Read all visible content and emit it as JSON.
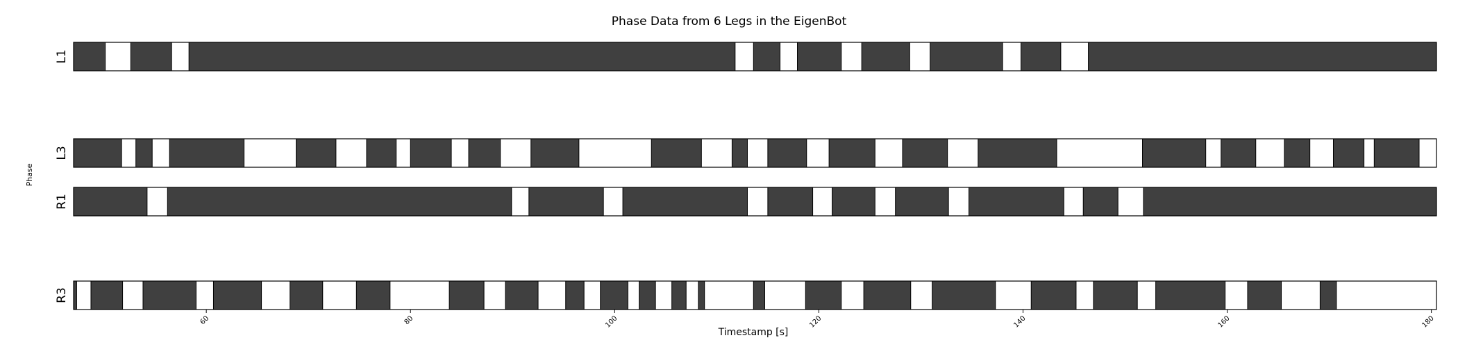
{
  "chart_data": {
    "type": "phase-bar",
    "title": "Phase Data from 6 Legs in the EigenBot",
    "xlabel": "Timestamp [s]",
    "ylabel": "Phase",
    "xlim": [
      47,
      180.5
    ],
    "xticks": [
      60,
      80,
      100,
      120,
      140,
      160,
      180
    ],
    "colors": {
      "stance": "#404040",
      "swing": "#ffffff",
      "edge": "#000000"
    },
    "rows": [
      {
        "label": "L1",
        "swing_intervals": [
          [
            50.1,
            52.6
          ],
          [
            56.6,
            58.3
          ],
          [
            111.8,
            113.6
          ],
          [
            116.2,
            117.9
          ],
          [
            122.2,
            124.2
          ],
          [
            128.9,
            130.9
          ],
          [
            138.0,
            139.8
          ],
          [
            143.7,
            146.4
          ]
        ]
      },
      {
        "label": "L3",
        "swing_intervals": [
          [
            51.7,
            53.1
          ],
          [
            54.7,
            56.4
          ],
          [
            63.7,
            68.8
          ],
          [
            72.7,
            75.7
          ],
          [
            78.6,
            80.0
          ],
          [
            84.0,
            85.7
          ],
          [
            88.8,
            91.8
          ],
          [
            96.5,
            103.6
          ],
          [
            108.5,
            111.5
          ],
          [
            113.0,
            115.0
          ],
          [
            118.8,
            121.0
          ],
          [
            125.5,
            128.2
          ],
          [
            132.6,
            135.6
          ],
          [
            143.3,
            151.7
          ],
          [
            157.9,
            159.4
          ],
          [
            162.8,
            165.6
          ],
          [
            168.1,
            170.4
          ],
          [
            173.4,
            174.4
          ],
          [
            178.8,
            180.5
          ]
        ]
      },
      {
        "label": "R1",
        "swing_intervals": [
          [
            54.2,
            56.2
          ],
          [
            89.9,
            91.6
          ],
          [
            98.9,
            100.8
          ],
          [
            113.0,
            115.0
          ],
          [
            119.4,
            121.3
          ],
          [
            125.5,
            127.5
          ],
          [
            132.7,
            134.7
          ],
          [
            144.0,
            145.9
          ],
          [
            149.3,
            151.8
          ]
        ]
      },
      {
        "label": "R3",
        "swing_intervals": [
          [
            47.3,
            48.7
          ],
          [
            51.8,
            53.8
          ],
          [
            59.0,
            60.7
          ],
          [
            65.4,
            68.2
          ],
          [
            71.4,
            74.7
          ],
          [
            78.0,
            83.8
          ],
          [
            87.2,
            89.3
          ],
          [
            92.5,
            95.2
          ],
          [
            97.0,
            98.6
          ],
          [
            101.3,
            102.4
          ],
          [
            104.0,
            105.6
          ],
          [
            107.0,
            108.2
          ],
          [
            108.8,
            113.6
          ],
          [
            114.7,
            118.7
          ],
          [
            122.2,
            124.4
          ],
          [
            129.0,
            131.1
          ],
          [
            137.3,
            140.8
          ],
          [
            145.2,
            146.9
          ],
          [
            151.2,
            153.0
          ],
          [
            159.8,
            162.0
          ],
          [
            165.3,
            169.1
          ],
          [
            170.7,
            181.2
          ]
        ]
      }
    ]
  }
}
